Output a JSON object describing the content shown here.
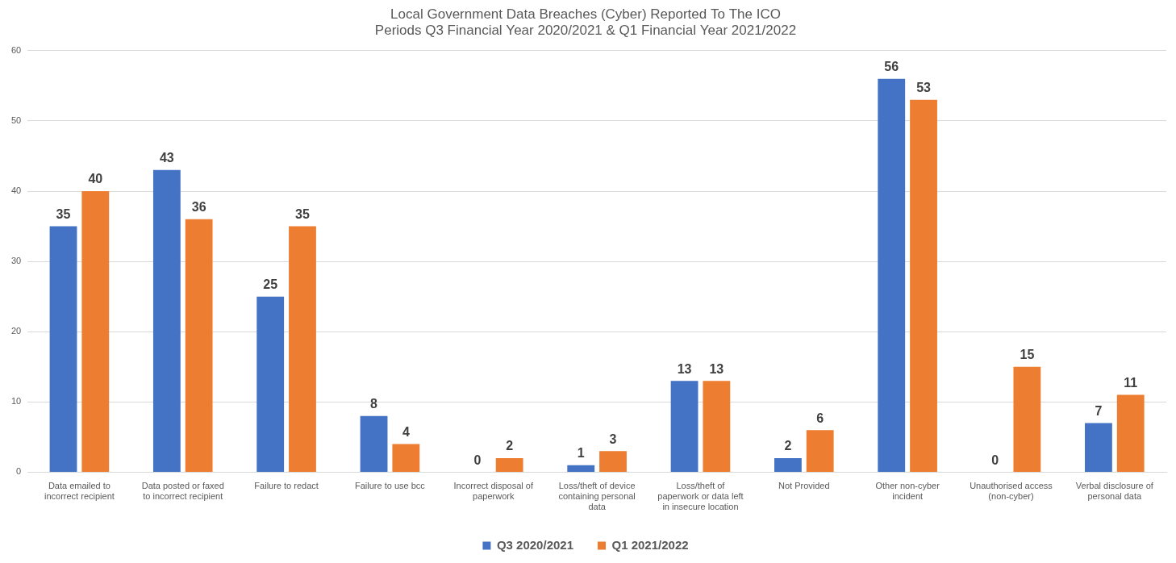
{
  "chart_data": {
    "type": "bar",
    "title": [
      "Local Government Data Breaches (Cyber) Reported To The ICO",
      "Periods Q3 Financial Year 2020/2021 & Q1 Financial Year 2021/2022"
    ],
    "categories": [
      "Data emailed to incorrect recipient",
      "Data posted or faxed to incorrect recipient",
      "Failure to redact",
      "Failure to use bcc",
      "Incorrect disposal of paperwork",
      "Loss/theft of device containing personal data",
      "Loss/theft of paperwork or data left in insecure location",
      "Not Provided",
      "Other non-cyber incident",
      "Unauthorised access (non-cyber)",
      "Verbal disclosure of personal data"
    ],
    "series": [
      {
        "name": "Q3 2020/2021",
        "color": "#4472c4",
        "values": [
          35,
          43,
          25,
          8,
          0,
          1,
          13,
          2,
          56,
          0,
          7
        ]
      },
      {
        "name": "Q1 2021/2022",
        "color": "#ed7d31",
        "values": [
          40,
          36,
          35,
          4,
          2,
          3,
          13,
          6,
          53,
          15,
          11
        ]
      }
    ],
    "ylim": [
      0,
      60
    ],
    "yticks": [
      0,
      10,
      20,
      30,
      40,
      50,
      60
    ],
    "grid": true,
    "legend": "bottom",
    "data_labels": true
  }
}
